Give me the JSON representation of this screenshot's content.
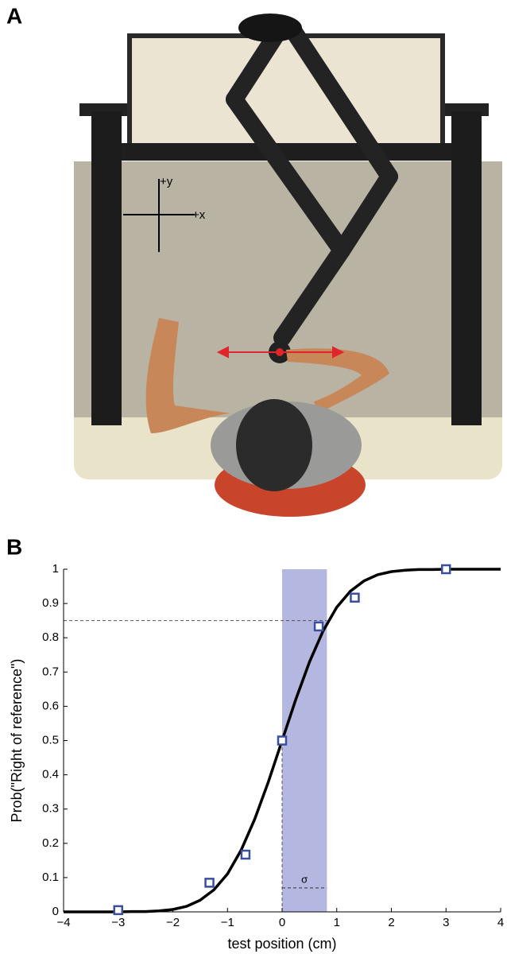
{
  "panel_a": {
    "label": "A",
    "y_axis": "+y",
    "x_axis": "+x"
  },
  "panel_b": {
    "label": "B"
  },
  "chart_data": {
    "type": "scatter",
    "xlabel": "test position (cm)",
    "ylabel": "Prob(\"Right of reference\")",
    "xlim": [
      -4,
      4
    ],
    "ylim": [
      0,
      1
    ],
    "xticks": [
      {
        "value": -4,
        "label": "−4"
      },
      {
        "value": -3,
        "label": "−3"
      },
      {
        "value": -2,
        "label": "−2"
      },
      {
        "value": -1,
        "label": "−1"
      },
      0,
      1,
      2,
      3,
      4
    ],
    "yticks": [
      0,
      0.1,
      0.2,
      0.3,
      0.4,
      0.5,
      0.6,
      0.7,
      0.8,
      0.9,
      1
    ],
    "points": {
      "color": "#3a4fa0",
      "x": [
        -3,
        -1.33,
        -0.67,
        0,
        0.67,
        1.33,
        3
      ],
      "values": [
        0.005,
        0.085,
        0.167,
        0.5,
        0.833,
        0.917,
        1.0
      ]
    },
    "fit": {
      "color": "#000000",
      "x": [
        -4,
        -3.75,
        -3.5,
        -3.25,
        -3,
        -2.75,
        -2.5,
        -2.25,
        -2,
        -1.75,
        -1.5,
        -1.25,
        -1,
        -0.75,
        -0.5,
        -0.25,
        0,
        0.25,
        0.5,
        0.75,
        1,
        1.25,
        1.5,
        1.75,
        2,
        2.25,
        2.5,
        2.75,
        3,
        3.25,
        3.5,
        3.75,
        4
      ],
      "values": [
        0,
        0,
        0,
        0,
        0,
        0.001,
        0.001,
        0.003,
        0.007,
        0.016,
        0.034,
        0.064,
        0.111,
        0.18,
        0.271,
        0.38,
        0.5,
        0.62,
        0.729,
        0.82,
        0.889,
        0.936,
        0.966,
        0.984,
        0.993,
        0.997,
        0.999,
        0.999,
        1,
        1,
        1,
        1,
        1
      ]
    },
    "band": {
      "color": "#b4b8e0",
      "x": [
        0,
        0.82
      ]
    },
    "threshold": 0.85,
    "sigma": {
      "label": "σ",
      "y": 0.07
    }
  }
}
